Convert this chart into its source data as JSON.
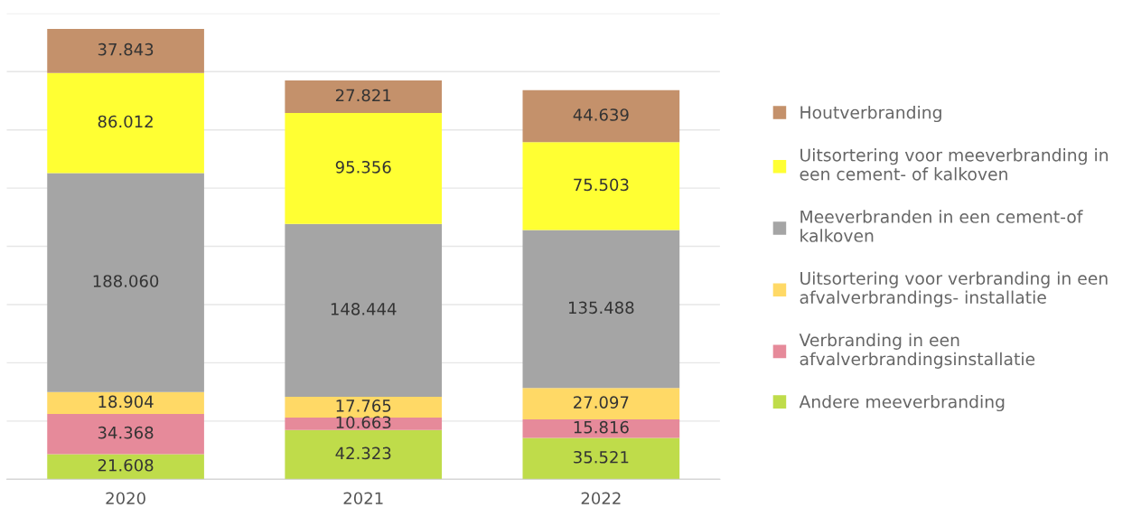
{
  "chart_data": {
    "type": "bar",
    "stacked": true,
    "categories": [
      "2020",
      "2021",
      "2022"
    ],
    "series": [
      {
        "name": "Andere meeverbranding",
        "color": "#bfdc4a",
        "values": [
          21608,
          42323,
          35521
        ],
        "value_labels": [
          "21.608",
          "42.323",
          "35.521"
        ]
      },
      {
        "name": "Verbranding in een\nafvalverbrandingsinstallatie",
        "color": "#e68a9a",
        "values": [
          34368,
          10663,
          15816
        ],
        "value_labels": [
          "34.368",
          "10.663",
          "15.816"
        ]
      },
      {
        "name": "Uitsortering voor verbranding in een\nafvalverbrandings- installatie",
        "color": "#ffd966",
        "values": [
          18904,
          17765,
          27097
        ],
        "value_labels": [
          "18.904",
          "17.765",
          "27.097"
        ]
      },
      {
        "name": "Meeverbranden in een cement-of\nkalkoven",
        "color": "#a5a5a5",
        "values": [
          188060,
          148444,
          135488
        ],
        "value_labels": [
          "188.060",
          "148.444",
          "135.488"
        ]
      },
      {
        "name": "Uitsortering voor meeverbranding in\neen cement- of kalkoven",
        "color": "#ffff33",
        "values": [
          86012,
          95356,
          75503
        ],
        "value_labels": [
          "86.012",
          "95.356",
          "75.503"
        ]
      },
      {
        "name": "Houtverbranding",
        "color": "#c4916b",
        "values": [
          37843,
          27821,
          44639
        ],
        "value_labels": [
          "37.843",
          "27.821",
          "44.639"
        ]
      }
    ],
    "ylim": [
      0,
      400000
    ],
    "yticks": [
      {
        "value": 0,
        "label": null
      },
      {
        "value": 50000,
        "label": null
      },
      {
        "value": 100000,
        "label": null
      },
      {
        "value": 150000,
        "label": null
      },
      {
        "value": 200000,
        "label": null
      },
      {
        "value": 250000,
        "label": null
      },
      {
        "value": 300000,
        "label": null
      },
      {
        "value": 350000,
        "label": null
      },
      {
        "value": 400000,
        "label": null
      }
    ],
    "tick_labels": "x",
    "grid": "y",
    "legend": "right"
  }
}
